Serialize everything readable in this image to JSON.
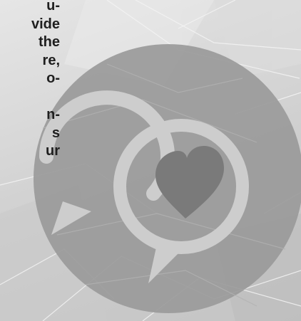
{
  "text_fragment": {
    "lines": [
      "u-",
      "vide",
      "the",
      "re,",
      "o-",
      "",
      "n-",
      "s",
      "ur"
    ]
  },
  "artwork": {
    "icon": "speech-bubbles-heart-icon",
    "colors": {
      "circle": "#9a9a9a",
      "bubble_outline": "#cdcdcd",
      "heart": "#7a7a7a",
      "text": "#1f1f1f"
    }
  }
}
